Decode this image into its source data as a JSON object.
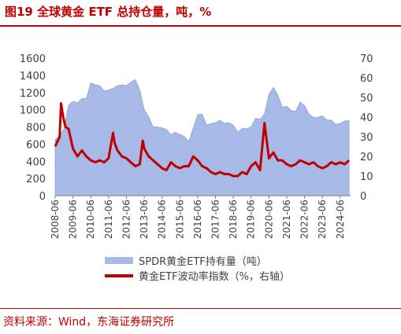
{
  "figure": {
    "title": "图19  全球黄金 ETF 总持仓量，吨，%",
    "source": "资料来源：Wind，东海证券研究所"
  },
  "colors": {
    "accent": "#c00000",
    "bar_fill": "#a7b9e6",
    "line": "#c00000",
    "axis_text": "#404040"
  },
  "chart_data": {
    "type": "area",
    "x": [
      "2008-06",
      "2009-06",
      "2010-06",
      "2011-06",
      "2012-06",
      "2013-06",
      "2014-06",
      "2015-06",
      "2016-06",
      "2017-06",
      "2018-06",
      "2019-06",
      "2020-06",
      "2021-06",
      "2022-06",
      "2023-06",
      "2024-06"
    ],
    "x_range": [
      "2008-06",
      "2025-01"
    ],
    "yleft_ticks": [
      0,
      200,
      400,
      600,
      800,
      1000,
      1200,
      1400,
      1600
    ],
    "yright_ticks": [
      0,
      10,
      20,
      30,
      40,
      50,
      60,
      70
    ],
    "ylim_left": [
      0,
      1600
    ],
    "ylim_right": [
      0,
      70
    ],
    "legend_position": "bottom",
    "series": [
      {
        "name": "SPDR黄金ETF持有量（吨）",
        "type": "area",
        "axis": "left",
        "values": [
          [
            "2008-06",
            650
          ],
          [
            "2008-09",
            700
          ],
          [
            "2008-12",
            780
          ],
          [
            "2009-03",
            1050
          ],
          [
            "2009-06",
            1100
          ],
          [
            "2009-09",
            1080
          ],
          [
            "2009-12",
            1130
          ],
          [
            "2010-03",
            1130
          ],
          [
            "2010-06",
            1310
          ],
          [
            "2010-09",
            1290
          ],
          [
            "2010-12",
            1280
          ],
          [
            "2011-03",
            1220
          ],
          [
            "2011-06",
            1230
          ],
          [
            "2011-09",
            1250
          ],
          [
            "2011-12",
            1280
          ],
          [
            "2012-03",
            1290
          ],
          [
            "2012-06",
            1280
          ],
          [
            "2012-09",
            1320
          ],
          [
            "2012-12",
            1350
          ],
          [
            "2013-03",
            1230
          ],
          [
            "2013-06",
            1000
          ],
          [
            "2013-09",
            920
          ],
          [
            "2013-12",
            800
          ],
          [
            "2014-03",
            800
          ],
          [
            "2014-06",
            790
          ],
          [
            "2014-09",
            770
          ],
          [
            "2014-12",
            710
          ],
          [
            "2015-03",
            740
          ],
          [
            "2015-06",
            710
          ],
          [
            "2015-09",
            690
          ],
          [
            "2015-12",
            630
          ],
          [
            "2016-03",
            790
          ],
          [
            "2016-06",
            940
          ],
          [
            "2016-09",
            950
          ],
          [
            "2016-12",
            820
          ],
          [
            "2017-03",
            840
          ],
          [
            "2017-06",
            850
          ],
          [
            "2017-09",
            880
          ],
          [
            "2017-12",
            840
          ],
          [
            "2018-03",
            850
          ],
          [
            "2018-06",
            820
          ],
          [
            "2018-09",
            740
          ],
          [
            "2018-12",
            780
          ],
          [
            "2019-03",
            780
          ],
          [
            "2019-06",
            800
          ],
          [
            "2019-09",
            900
          ],
          [
            "2019-12",
            890
          ],
          [
            "2020-03",
            950
          ],
          [
            "2020-06",
            1180
          ],
          [
            "2020-09",
            1260
          ],
          [
            "2020-12",
            1170
          ],
          [
            "2021-03",
            1030
          ],
          [
            "2021-06",
            1040
          ],
          [
            "2021-09",
            990
          ],
          [
            "2021-12",
            980
          ],
          [
            "2022-03",
            1090
          ],
          [
            "2022-06",
            1050
          ],
          [
            "2022-09",
            950
          ],
          [
            "2022-12",
            910
          ],
          [
            "2023-03",
            910
          ],
          [
            "2023-06",
            930
          ],
          [
            "2023-09",
            880
          ],
          [
            "2023-12",
            880
          ],
          [
            "2024-03",
            830
          ],
          [
            "2024-06",
            840
          ],
          [
            "2024-09",
            870
          ],
          [
            "2024-12",
            870
          ]
        ]
      },
      {
        "name": "黄金ETF波动率指数（%，右轴）",
        "type": "line",
        "axis": "right",
        "values": [
          [
            "2008-06",
            25
          ],
          [
            "2008-09",
            30
          ],
          [
            "2008-10",
            47
          ],
          [
            "2008-11",
            42
          ],
          [
            "2008-12",
            38
          ],
          [
            "2009-01",
            35
          ],
          [
            "2009-03",
            34
          ],
          [
            "2009-06",
            24
          ],
          [
            "2009-09",
            20
          ],
          [
            "2009-12",
            23
          ],
          [
            "2010-03",
            20
          ],
          [
            "2010-06",
            18
          ],
          [
            "2010-09",
            17
          ],
          [
            "2010-12",
            18
          ],
          [
            "2011-03",
            17
          ],
          [
            "2011-06",
            19
          ],
          [
            "2011-09",
            32
          ],
          [
            "2011-10",
            27
          ],
          [
            "2011-12",
            23
          ],
          [
            "2012-03",
            20
          ],
          [
            "2012-06",
            19
          ],
          [
            "2012-09",
            17
          ],
          [
            "2012-12",
            15
          ],
          [
            "2013-03",
            16
          ],
          [
            "2013-05",
            28
          ],
          [
            "2013-06",
            24
          ],
          [
            "2013-09",
            20
          ],
          [
            "2013-12",
            18
          ],
          [
            "2014-03",
            16
          ],
          [
            "2014-06",
            14
          ],
          [
            "2014-09",
            13
          ],
          [
            "2014-12",
            17
          ],
          [
            "2015-03",
            15
          ],
          [
            "2015-06",
            14
          ],
          [
            "2015-09",
            15
          ],
          [
            "2015-12",
            15
          ],
          [
            "2016-03",
            20
          ],
          [
            "2016-06",
            18
          ],
          [
            "2016-09",
            15
          ],
          [
            "2016-12",
            14
          ],
          [
            "2017-03",
            12
          ],
          [
            "2017-06",
            11
          ],
          [
            "2017-09",
            12
          ],
          [
            "2017-12",
            11
          ],
          [
            "2018-03",
            11
          ],
          [
            "2018-06",
            10
          ],
          [
            "2018-09",
            10
          ],
          [
            "2018-12",
            12
          ],
          [
            "2019-03",
            11
          ],
          [
            "2019-06",
            15
          ],
          [
            "2019-09",
            17
          ],
          [
            "2019-12",
            13
          ],
          [
            "2020-03",
            37
          ],
          [
            "2020-06",
            19
          ],
          [
            "2020-09",
            22
          ],
          [
            "2020-12",
            18
          ],
          [
            "2021-03",
            18
          ],
          [
            "2021-06",
            16
          ],
          [
            "2021-09",
            15
          ],
          [
            "2021-12",
            16
          ],
          [
            "2022-03",
            18
          ],
          [
            "2022-06",
            17
          ],
          [
            "2022-09",
            16
          ],
          [
            "2022-12",
            17
          ],
          [
            "2023-03",
            15
          ],
          [
            "2023-06",
            14
          ],
          [
            "2023-09",
            15
          ],
          [
            "2023-12",
            17
          ],
          [
            "2024-03",
            16
          ],
          [
            "2024-06",
            17
          ],
          [
            "2024-09",
            16
          ],
          [
            "2024-12",
            18
          ]
        ]
      }
    ]
  }
}
